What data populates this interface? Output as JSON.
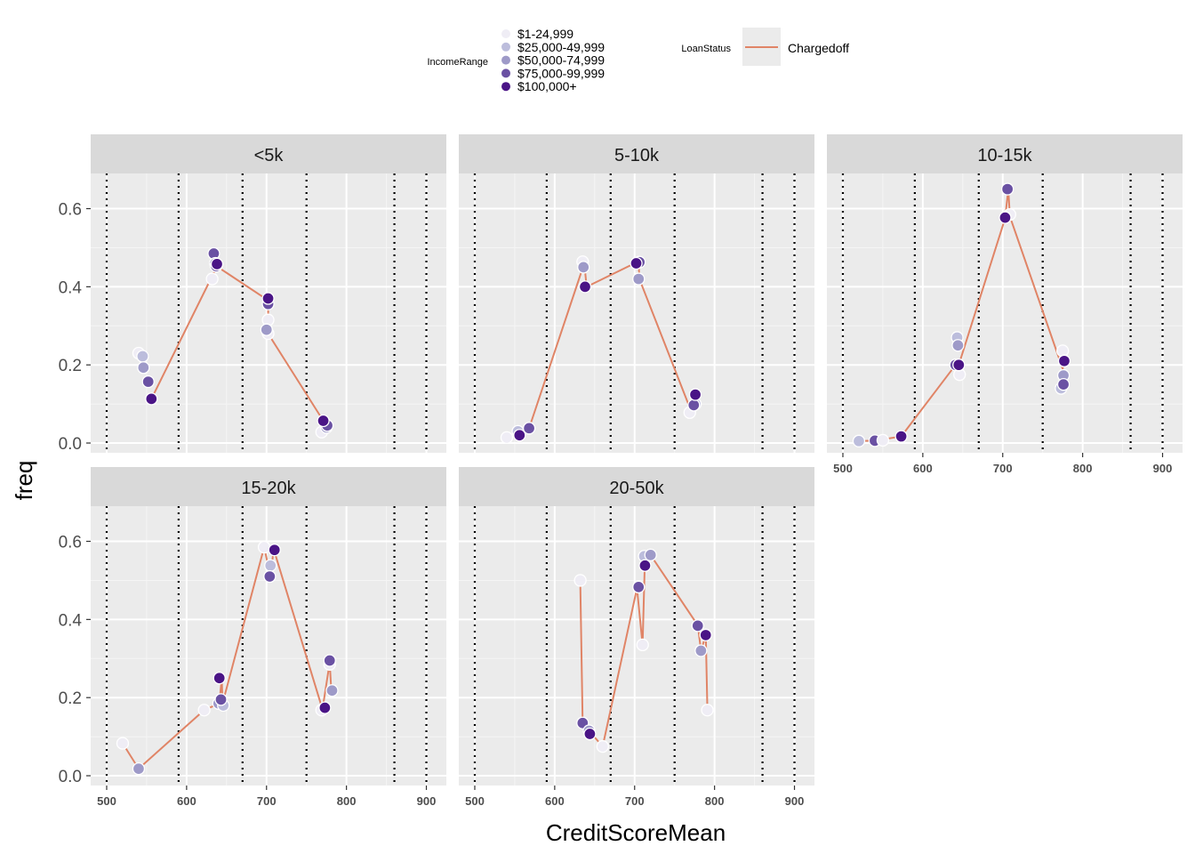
{
  "chart_data": {
    "type": "line",
    "xlabel": "CreditScoreMean",
    "ylabel": "freq",
    "xlim": [
      480,
      925
    ],
    "ylim": [
      -0.025,
      0.69
    ],
    "x_ticks": [
      500,
      600,
      700,
      800,
      900
    ],
    "y_ticks": [
      0.0,
      0.2,
      0.4,
      0.6
    ],
    "y_tick_labels": [
      "0.0",
      "0.2",
      "0.4",
      "0.6"
    ],
    "x_tick_labels": [
      "500",
      "600",
      "700",
      "800",
      "900"
    ],
    "vlines": [
      500,
      590,
      670,
      750,
      860,
      900
    ],
    "grid": true,
    "line_color": "#e08466",
    "legend": {
      "position": "top",
      "income_title": "IncomeRange",
      "income_items": [
        {
          "label": "$1-24,999",
          "color": "#efedf5"
        },
        {
          "label": "$25,000-49,999",
          "color": "#bcbddc"
        },
        {
          "label": "$50,000-74,999",
          "color": "#9e9ac8"
        },
        {
          "label": "$75,000-99,999",
          "color": "#6a51a3"
        },
        {
          "label": "$100,000+",
          "color": "#4a1486"
        }
      ],
      "status_title": "LoanStatus",
      "status_items": [
        {
          "label": "Chargedoff",
          "color": "#e08466"
        }
      ]
    },
    "panels": [
      {
        "title": "<5k",
        "line": [
          [
            556,
            0.113
          ],
          [
            638,
            0.452
          ],
          [
            702,
            0.365
          ],
          [
            702,
            0.28
          ],
          [
            771,
            0.057
          ],
          [
            771,
            0.03
          ]
        ],
        "points": [
          [
            540,
            0.23,
            0
          ],
          [
            545,
            0.222,
            1
          ],
          [
            546,
            0.193,
            2
          ],
          [
            552,
            0.157,
            3
          ],
          [
            556,
            0.113,
            4
          ],
          [
            632,
            0.42,
            0
          ],
          [
            634,
            0.485,
            3
          ],
          [
            636,
            0.46,
            2
          ],
          [
            637,
            0.453,
            3
          ],
          [
            638,
            0.458,
            4
          ],
          [
            702,
            0.315,
            0
          ],
          [
            702,
            0.28,
            0
          ],
          [
            700,
            0.29,
            2
          ],
          [
            702,
            0.356,
            3
          ],
          [
            702,
            0.37,
            4
          ],
          [
            769,
            0.028,
            0
          ],
          [
            775,
            0.04,
            2
          ],
          [
            776,
            0.045,
            3
          ],
          [
            771,
            0.057,
            4
          ]
        ]
      },
      {
        "title": "5-10k",
        "line": [
          [
            556,
            0.02
          ],
          [
            568,
            0.038
          ],
          [
            637,
            0.46
          ],
          [
            640,
            0.4
          ],
          [
            705,
            0.465
          ],
          [
            706,
            0.42
          ],
          [
            771,
            0.08
          ],
          [
            776,
            0.125
          ]
        ],
        "points": [
          [
            540,
            0.014,
            0
          ],
          [
            554,
            0.03,
            1
          ],
          [
            568,
            0.038,
            3
          ],
          [
            556,
            0.02,
            4
          ],
          [
            635,
            0.464,
            0
          ],
          [
            636,
            0.45,
            2
          ],
          [
            638,
            0.4,
            4
          ],
          [
            706,
            0.463,
            3
          ],
          [
            705,
            0.42,
            2
          ],
          [
            702,
            0.46,
            4
          ],
          [
            769,
            0.078,
            0
          ],
          [
            776,
            0.1,
            1
          ],
          [
            774,
            0.097,
            3
          ],
          [
            776,
            0.124,
            4
          ]
        ]
      },
      {
        "title": "10-15k",
        "line": [
          [
            520,
            0.005
          ],
          [
            540,
            0.006
          ],
          [
            573,
            0.017
          ],
          [
            641,
            0.2
          ],
          [
            645,
            0.2
          ],
          [
            703,
            0.575
          ],
          [
            707,
            0.65
          ],
          [
            709,
            0.58
          ],
          [
            775,
            0.19
          ],
          [
            777,
            0.21
          ]
        ],
        "points": [
          [
            520,
            0.005,
            1
          ],
          [
            540,
            0.006,
            3
          ],
          [
            550,
            0.007,
            0
          ],
          [
            573,
            0.017,
            4
          ],
          [
            643,
            0.27,
            1
          ],
          [
            644,
            0.25,
            2
          ],
          [
            641,
            0.2,
            3
          ],
          [
            646,
            0.175,
            0
          ],
          [
            645,
            0.2,
            4
          ],
          [
            709,
            0.585,
            0
          ],
          [
            706,
            0.65,
            3
          ],
          [
            703,
            0.577,
            4
          ],
          [
            775,
            0.236,
            0
          ],
          [
            773,
            0.14,
            1
          ],
          [
            776,
            0.173,
            2
          ],
          [
            776,
            0.15,
            3
          ],
          [
            777,
            0.21,
            4
          ]
        ]
      },
      {
        "title": "15-20k",
        "line": [
          [
            520,
            0.083
          ],
          [
            540,
            0.018
          ],
          [
            622,
            0.168
          ],
          [
            641,
            0.185
          ],
          [
            644,
            0.25
          ],
          [
            645,
            0.185
          ],
          [
            697,
            0.585
          ],
          [
            705,
            0.51
          ],
          [
            709,
            0.58
          ],
          [
            770,
            0.17
          ],
          [
            779,
            0.29
          ],
          [
            781,
            0.218
          ]
        ],
        "points": [
          [
            520,
            0.083,
            0
          ],
          [
            540,
            0.018,
            2
          ],
          [
            622,
            0.168,
            0
          ],
          [
            640,
            0.185,
            2
          ],
          [
            646,
            0.18,
            1
          ],
          [
            643,
            0.195,
            3
          ],
          [
            641,
            0.25,
            4
          ],
          [
            697,
            0.585,
            0
          ],
          [
            705,
            0.538,
            1
          ],
          [
            704,
            0.51,
            3
          ],
          [
            710,
            0.578,
            4
          ],
          [
            769,
            0.168,
            0
          ],
          [
            779,
            0.285,
            0
          ],
          [
            779,
            0.295,
            3
          ],
          [
            782,
            0.218,
            2
          ],
          [
            773,
            0.174,
            4
          ]
        ]
      },
      {
        "title": "20-50k",
        "line": [
          [
            632,
            0.5
          ],
          [
            635,
            0.135
          ],
          [
            643,
            0.115
          ],
          [
            660,
            0.075
          ],
          [
            703,
            0.48
          ],
          [
            710,
            0.335
          ],
          [
            713,
            0.56
          ],
          [
            720,
            0.565
          ],
          [
            779,
            0.385
          ],
          [
            783,
            0.32
          ],
          [
            789,
            0.36
          ],
          [
            791,
            0.168
          ]
        ],
        "points": [
          [
            632,
            0.5,
            0
          ],
          [
            635,
            0.135,
            3
          ],
          [
            643,
            0.115,
            2
          ],
          [
            644,
            0.107,
            4
          ],
          [
            660,
            0.075,
            0
          ],
          [
            705,
            0.483,
            3
          ],
          [
            710,
            0.335,
            0
          ],
          [
            712,
            0.562,
            1
          ],
          [
            720,
            0.565,
            2
          ],
          [
            713,
            0.538,
            4
          ],
          [
            779,
            0.384,
            3
          ],
          [
            783,
            0.32,
            2
          ],
          [
            789,
            0.36,
            4
          ],
          [
            791,
            0.168,
            0
          ]
        ]
      }
    ]
  }
}
